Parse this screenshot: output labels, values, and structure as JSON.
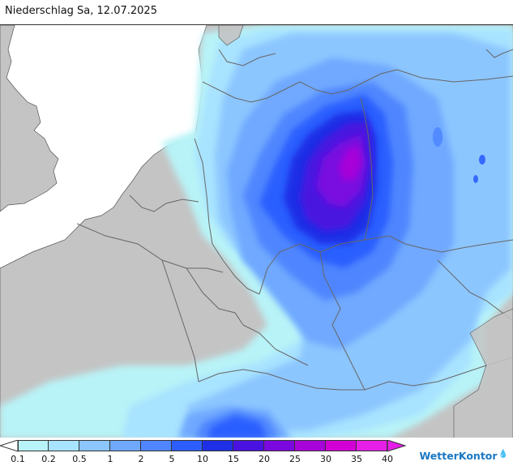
{
  "title": "Niederschlag Sa, 12.07.2025",
  "legend": {
    "ticks": [
      "0.1",
      "0.2",
      "0.5",
      "1",
      "2",
      "5",
      "10",
      "15",
      "20",
      "25",
      "30",
      "35",
      "40"
    ],
    "colors": [
      "#b8f3f7",
      "#a8e3ff",
      "#8cc6ff",
      "#6fa9ff",
      "#4f86ff",
      "#2c5eff",
      "#1e2fe6",
      "#4a12e0",
      "#7a08df",
      "#a704d9",
      "#d200d4",
      "#e51fe7"
    ]
  },
  "map": {
    "ocean_color": "#ffffff",
    "land_color": "#c4c4c4",
    "border_color": "#666666"
  },
  "brand": {
    "name": "WetterKontor",
    "icon": "raindrop-icon"
  }
}
